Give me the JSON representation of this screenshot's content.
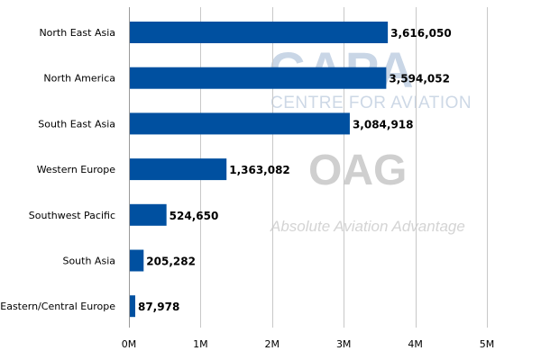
{
  "watermark": {
    "brand_main": "CAPA",
    "brand_sub": "CENTRE FOR AVIATION",
    "partner": "OAG",
    "partner_tagline": "Absolute Aviation Advantage"
  },
  "colors": {
    "bar": "#0050a0",
    "grid": "#c8c8c8",
    "axis": "#9a9a9a",
    "text": "#000000"
  },
  "chart_data": {
    "type": "bar",
    "orientation": "horizontal",
    "categories": [
      "North East Asia",
      "North America",
      "South East Asia",
      "Western Europe",
      "Southwest Pacific",
      "South Asia",
      "Eastern/Central Europe"
    ],
    "values": [
      3616050,
      3594052,
      3084918,
      1363082,
      524650,
      205282,
      87978
    ],
    "value_labels": [
      "3,616,050",
      "3,594,052",
      "3,084,918",
      "1,363,082",
      "524,650",
      "205,282",
      "87,978"
    ],
    "xlim": [
      0,
      5000000
    ],
    "xticks": [
      0,
      1000000,
      2000000,
      3000000,
      4000000,
      5000000
    ],
    "xtick_labels": [
      "0M",
      "1M",
      "2M",
      "3M",
      "4M",
      "5M"
    ],
    "title": "",
    "xlabel": "",
    "ylabel": "",
    "grid": "vertical",
    "legend": "none"
  }
}
